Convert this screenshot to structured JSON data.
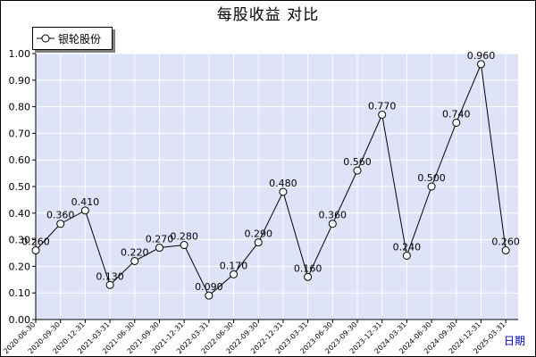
{
  "title": "每股收益 对比",
  "x_axis_name": "日期",
  "colors": {
    "plot_bg": "#dfe3f8",
    "grid": "#ffffff",
    "line": "#000000",
    "marker_fill": "#ffffff"
  },
  "chart_data": {
    "type": "line",
    "title": "每股收益 对比",
    "xlabel": "日期",
    "ylabel": "",
    "ylim": [
      0.0,
      1.0
    ],
    "yticks": [
      "0.00",
      "0.10",
      "0.20",
      "0.30",
      "0.40",
      "0.50",
      "0.60",
      "0.70",
      "0.80",
      "0.90",
      "1.00"
    ],
    "legend": "top-left",
    "grid": true,
    "categories": [
      "2020-06-30",
      "2020-09-30",
      "2020-12-31",
      "2021-03-31",
      "2021-06-30",
      "2021-09-30",
      "2021-12-31",
      "2022-03-31",
      "2022-06-30",
      "2022-09-30",
      "2022-12-31",
      "2023-03-31",
      "2023-06-30",
      "2023-09-30",
      "2023-12-31",
      "2024-03-31",
      "2024-06-30",
      "2024-09-30",
      "2024-12-31",
      "2025-03-31"
    ],
    "series": [
      {
        "name": "银轮股份",
        "values": [
          0.26,
          0.36,
          0.41,
          0.13,
          0.22,
          0.27,
          0.28,
          0.09,
          0.17,
          0.29,
          0.48,
          0.16,
          0.36,
          0.56,
          0.77,
          0.24,
          0.5,
          0.74,
          0.96,
          0.26
        ],
        "labels": [
          "0.260",
          "0.360",
          "0.410",
          "0.130",
          "0.220",
          "0.270",
          "0.280",
          "0.090",
          "0.170",
          "0.290",
          "0.480",
          "0.160",
          "0.360",
          "0.560",
          "0.770",
          "0.240",
          "0.500",
          "0.740",
          "0.960",
          "0.260"
        ]
      }
    ]
  }
}
